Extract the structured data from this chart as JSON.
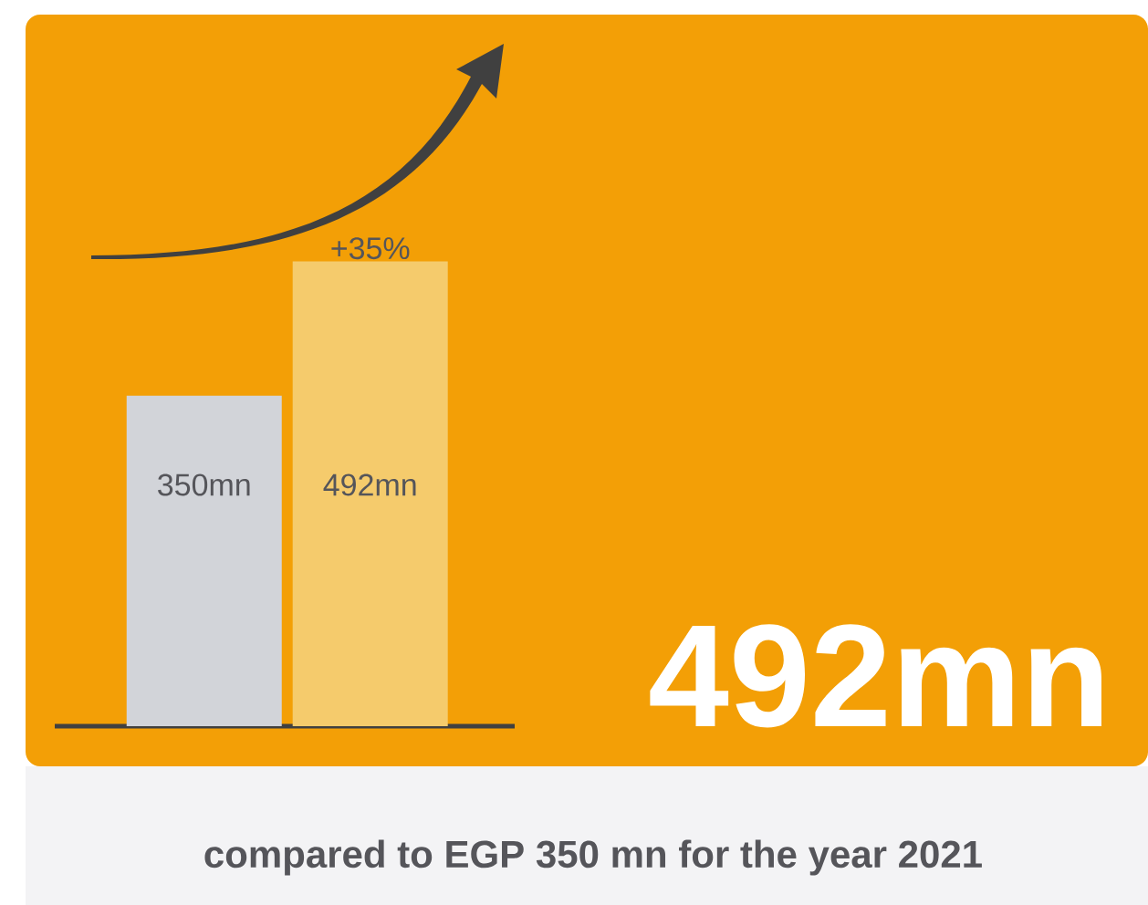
{
  "chart_data": {
    "type": "bar",
    "title": "492mn",
    "categories": [
      null,
      null
    ],
    "values": [
      350,
      492
    ],
    "colors": [
      "#d2d4d9",
      "#f5cb6c"
    ],
    "value_labels": [
      "350mn",
      "492mn"
    ],
    "annotations": [
      "+35%",
      "compared to EGP 350 mn for the year 2021"
    ]
  }
}
